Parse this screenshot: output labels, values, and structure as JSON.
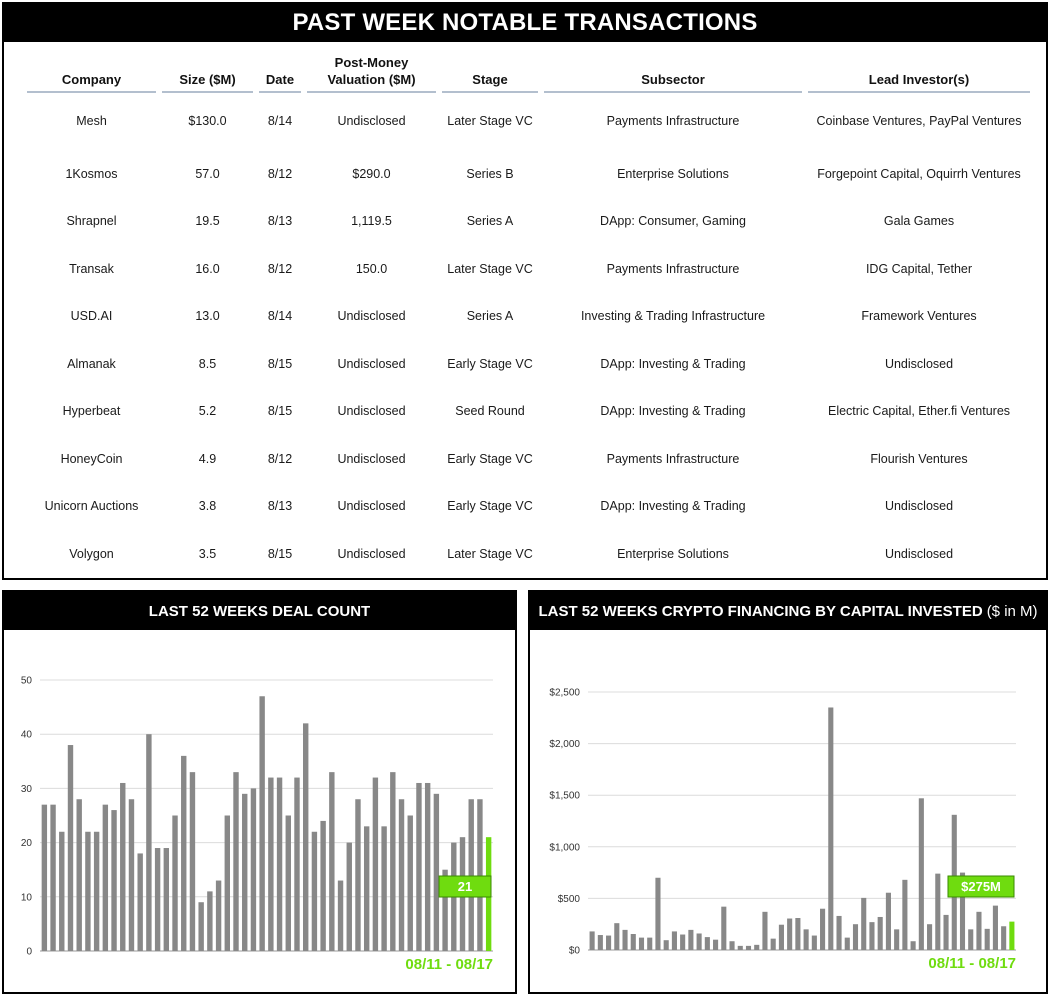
{
  "table_panel": {
    "title": "PAST WEEK NOTABLE TRANSACTIONS",
    "columns": [
      "Company",
      "Size ($M)",
      "Date",
      "Post-Money\nValuation ($M)",
      "Stage",
      "Subsector",
      "Lead Investor(s)"
    ],
    "rows": [
      [
        "Mesh",
        "$130.0",
        "8/14",
        "Undisclosed",
        "Later Stage VC",
        "Payments Infrastructure",
        "Coinbase Ventures, PayPal Ventures"
      ],
      [
        "1Kosmos",
        "57.0",
        "8/12",
        "$290.0",
        "Series B",
        "Enterprise Solutions",
        "Forgepoint Capital, Oquirrh Ventures"
      ],
      [
        "Shrapnel",
        "19.5",
        "8/13",
        "1,119.5",
        "Series A",
        "DApp: Consumer, Gaming",
        "Gala Games"
      ],
      [
        "Transak",
        "16.0",
        "8/12",
        "150.0",
        "Later Stage VC",
        "Payments Infrastructure",
        "IDG Capital, Tether"
      ],
      [
        "USD.AI",
        "13.0",
        "8/14",
        "Undisclosed",
        "Series A",
        "Investing & Trading Infrastructure",
        "Framework Ventures"
      ],
      [
        "Almanak",
        "8.5",
        "8/15",
        "Undisclosed",
        "Early Stage VC",
        "DApp: Investing & Trading",
        "Undisclosed"
      ],
      [
        "Hyperbeat",
        "5.2",
        "8/15",
        "Undisclosed",
        "Seed Round",
        "DApp: Investing & Trading",
        "Electric Capital, Ether.fi Ventures"
      ],
      [
        "HoneyCoin",
        "4.9",
        "8/12",
        "Undisclosed",
        "Early Stage VC",
        "Payments Infrastructure",
        "Flourish Ventures"
      ],
      [
        "Unicorn Auctions",
        "3.8",
        "8/13",
        "Undisclosed",
        "Early Stage VC",
        "DApp: Investing & Trading",
        "Undisclosed"
      ],
      [
        "Volygon",
        "3.5",
        "8/15",
        "Undisclosed",
        "Later Stage VC",
        "Enterprise Solutions",
        "Undisclosed"
      ]
    ]
  },
  "colors": {
    "bar": "#888888",
    "highlight": "#6fdc0f",
    "header_bg": "#000000",
    "underline": "#b3bfce",
    "grid": "#dcdcdc"
  },
  "chart_data": [
    {
      "type": "bar",
      "title": "LAST 52 WEEKS DEAL COUNT",
      "unit_note": "",
      "ylim": [
        0,
        50
      ],
      "yticks": [
        0,
        10,
        20,
        30,
        40,
        50
      ],
      "ytick_labels": [
        "0",
        "10",
        "20",
        "30",
        "40",
        "50"
      ],
      "values": [
        27,
        27,
        22,
        38,
        28,
        22,
        22,
        27,
        26,
        31,
        28,
        18,
        40,
        19,
        19,
        25,
        36,
        33,
        9,
        11,
        13,
        25,
        33,
        29,
        30,
        47,
        32,
        32,
        25,
        32,
        42,
        22,
        24,
        33,
        13,
        20,
        28,
        23,
        32,
        23,
        33,
        28,
        25,
        31,
        31,
        29,
        15,
        20,
        21,
        28,
        28,
        21
      ],
      "highlight_index": 51,
      "callout": "21",
      "period_label": "08/11 - 08/17",
      "grid": true
    },
    {
      "type": "bar",
      "title": "LAST 52 WEEKS CRYPTO FINANCING BY CAPITAL INVESTED",
      "unit_note": "($ in M)",
      "ylim": [
        0,
        2500
      ],
      "yticks": [
        0,
        500,
        1000,
        1500,
        2000,
        2500
      ],
      "ytick_labels": [
        "$0",
        "$500",
        "$1,000",
        "$1,500",
        "$2,000",
        "$2,500"
      ],
      "values": [
        180,
        145,
        140,
        260,
        195,
        155,
        120,
        120,
        700,
        95,
        180,
        150,
        195,
        160,
        125,
        100,
        420,
        85,
        40,
        40,
        50,
        370,
        110,
        245,
        305,
        310,
        200,
        140,
        400,
        2350,
        330,
        120,
        250,
        505,
        270,
        320,
        555,
        200,
        680,
        85,
        1470,
        250,
        740,
        340,
        1310,
        750,
        200,
        370,
        205,
        430,
        230,
        275
      ],
      "highlight_index": 51,
      "callout": "$275M",
      "period_label": "08/11 - 08/17",
      "grid": true
    }
  ]
}
